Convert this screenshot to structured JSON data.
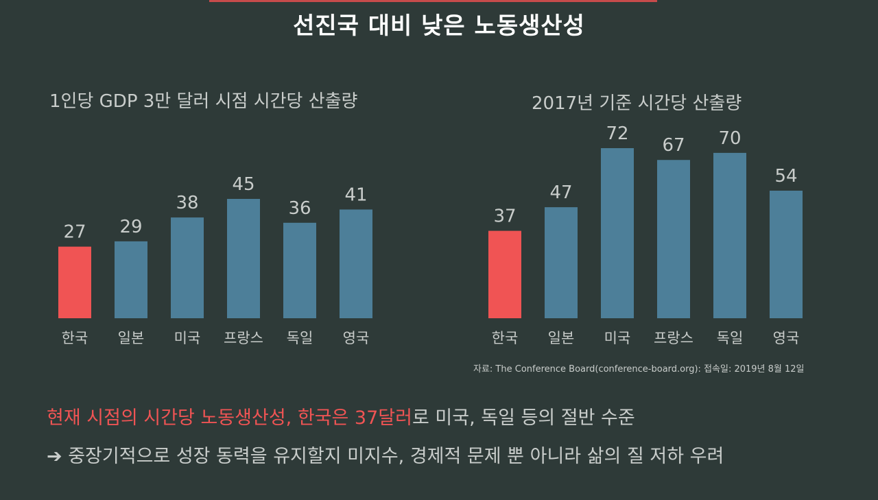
{
  "title": "선진국 대비 낮은 노동생산성",
  "colors": {
    "highlight": "#f05454",
    "bar": "#4d7f99",
    "text": "#c9cdcb",
    "background": "#2e3a38"
  },
  "chart_data": [
    {
      "type": "bar",
      "title": "1인당 GDP 3만 달러 시점 시간당 산출량",
      "categories": [
        "한국",
        "일본",
        "미국",
        "프랑스",
        "독일",
        "영국"
      ],
      "values": [
        27,
        29,
        38,
        45,
        36,
        41
      ],
      "highlight_index": 0,
      "ylim": [
        0,
        45
      ],
      "grid": false,
      "legend": "none"
    },
    {
      "type": "bar",
      "title": "2017년 기준 시간당 산출량",
      "categories": [
        "한국",
        "일본",
        "미국",
        "프랑스",
        "독일",
        "영국"
      ],
      "values": [
        37,
        47,
        72,
        67,
        70,
        54
      ],
      "highlight_index": 0,
      "ylim": [
        0,
        72
      ],
      "grid": false,
      "legend": "none"
    }
  ],
  "source": "자료: The Conference Board(conference-board.org): 접속일: 2019년 8월 12일",
  "summary": {
    "line1_highlight": "현재 시점의 시간당 노동생산성, 한국은 37달러",
    "line1_rest": "로 미국, 독일 등의 절반 수준",
    "line2": "➔ 중장기적으로 성장 동력을 유지할지 미지수, 경제적 문제 뿐 아니라 삶의 질 저하 우려"
  }
}
